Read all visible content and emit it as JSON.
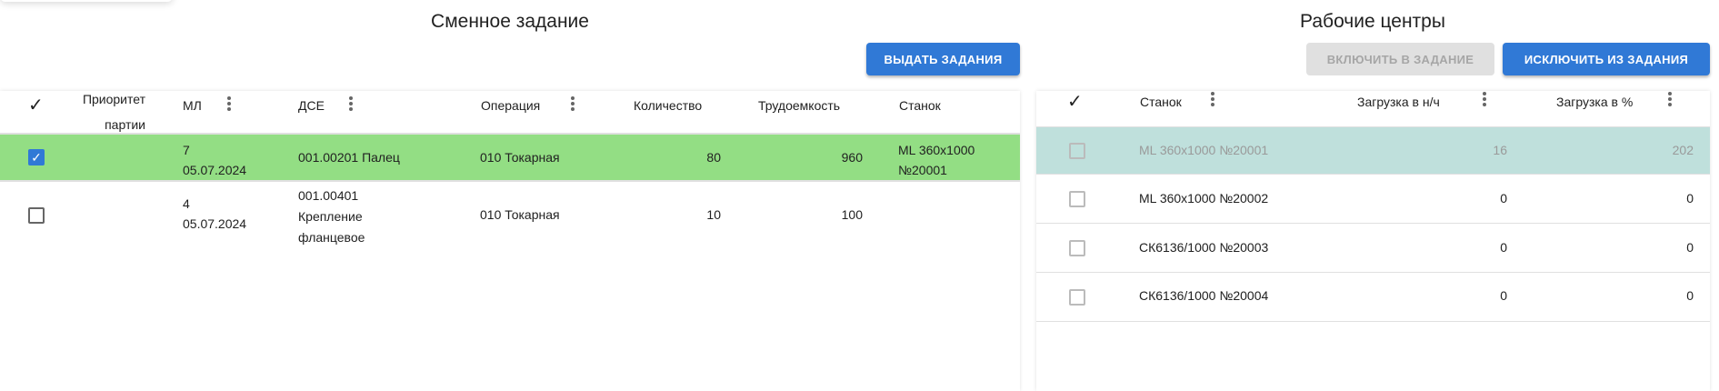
{
  "shift_task": {
    "title": "Сменное задание",
    "issue_button": "ВЫДАТЬ ЗАДАНИЯ",
    "columns": {
      "priority_line1": "Приоритет",
      "priority_line2": "партии",
      "ml": "МЛ",
      "dse": "ДСЕ",
      "operation": "Операция",
      "quantity": "Количество",
      "labor": "Трудоемкость",
      "machine": "Станок"
    },
    "rows": [
      {
        "checked": true,
        "ml_num": "7",
        "ml_date": "05.07.2024",
        "dse_lines": [
          "001.00201 Палец"
        ],
        "operation": "010 Токарная",
        "quantity": "80",
        "labor": "960",
        "machine_line1": "ML 360x1000",
        "machine_line2": "№20001"
      },
      {
        "checked": false,
        "ml_num": "4",
        "ml_date": "05.07.2024",
        "dse_lines": [
          "001.00401",
          "Крепление",
          "фланцевое"
        ],
        "operation": "010 Токарная",
        "quantity": "10",
        "labor": "100",
        "machine_line1": "",
        "machine_line2": ""
      }
    ],
    "selected_row_color": "#93de84"
  },
  "work_centers": {
    "title": "Рабочие центры",
    "include_button": "ВКЛЮЧИТЬ В ЗАДАНИЕ",
    "exclude_button": "ИСКЛЮЧИТЬ ИЗ ЗАДАНИЯ",
    "columns": {
      "machine": "Станок",
      "load_hours": "Загрузка в н/ч",
      "load_percent": "Загрузка в %"
    },
    "rows": [
      {
        "machine": "ML 360x1000 №20001",
        "load_hours": "16",
        "load_percent": "202",
        "disabled": true
      },
      {
        "machine": "ML 360x1000 №20002",
        "load_hours": "0",
        "load_percent": "0"
      },
      {
        "machine": "СК6136/1000 №20003",
        "load_hours": "0",
        "load_percent": "0"
      },
      {
        "machine": "СК6136/1000 №20004",
        "load_hours": "0",
        "load_percent": "0"
      }
    ],
    "highlight_row_color": "#bfe0dc"
  },
  "icons": {
    "check": "✓",
    "kebab": "more-vert-icon"
  }
}
